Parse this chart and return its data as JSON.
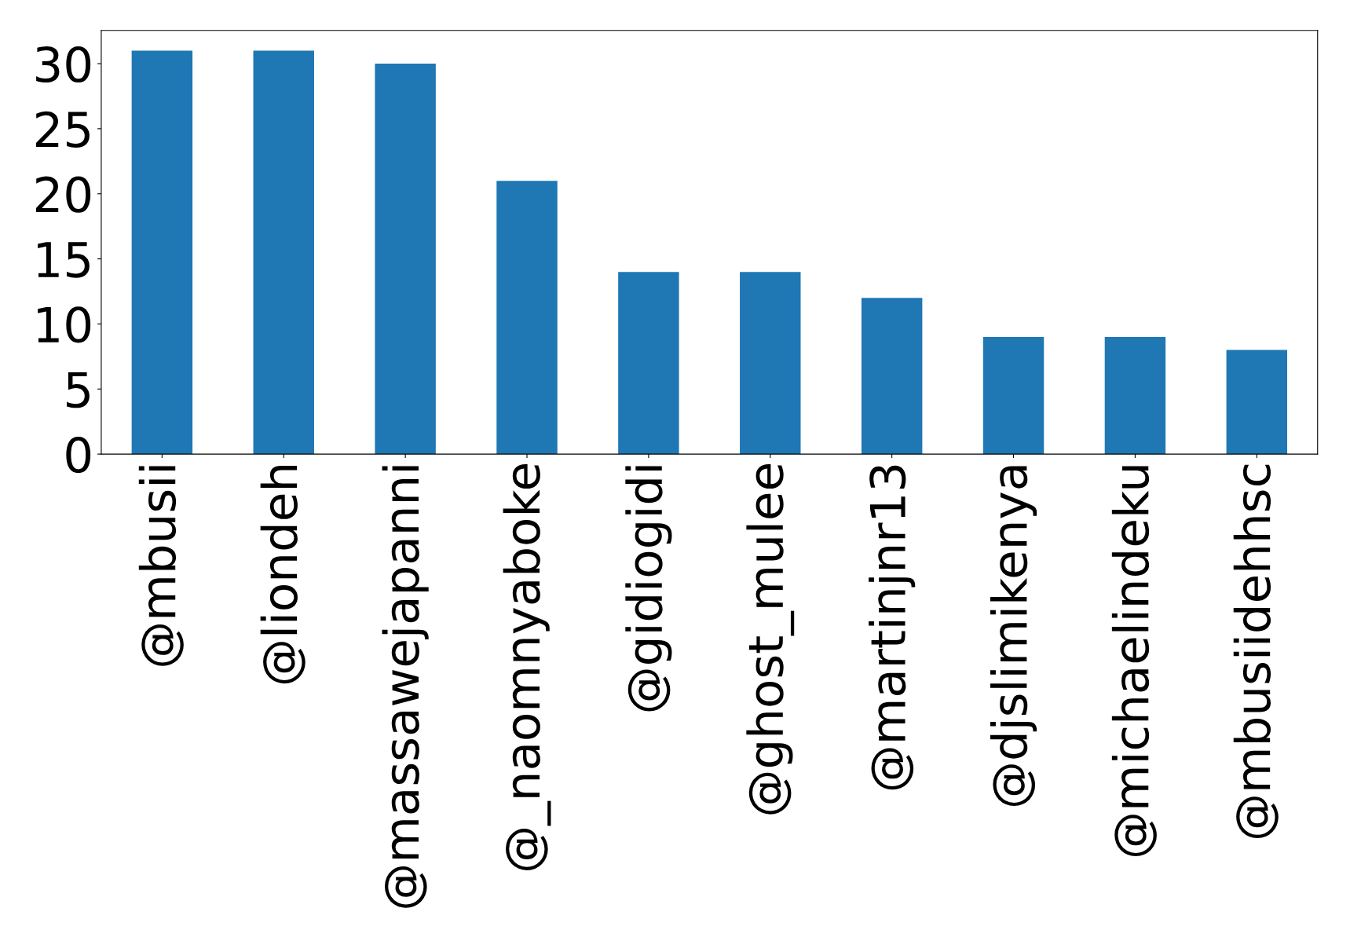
{
  "chart_data": {
    "type": "bar",
    "categories": [
      "@mbusii",
      "@liondeh",
      "@massawejapanni",
      "@_naomnyaboke",
      "@gidiogidi",
      "@ghost_mulee",
      "@martinjnr13",
      "@djslimikenya",
      "@michaelindeku",
      "@mbusiidehhsc"
    ],
    "values": [
      31,
      31,
      30,
      21,
      14,
      14,
      12,
      9,
      9,
      8
    ],
    "color": "#1f77b4",
    "ylim": [
      0,
      32.55
    ],
    "yticks": [
      0,
      5,
      10,
      15,
      20,
      25,
      30
    ],
    "grid": false,
    "legend": false
  }
}
